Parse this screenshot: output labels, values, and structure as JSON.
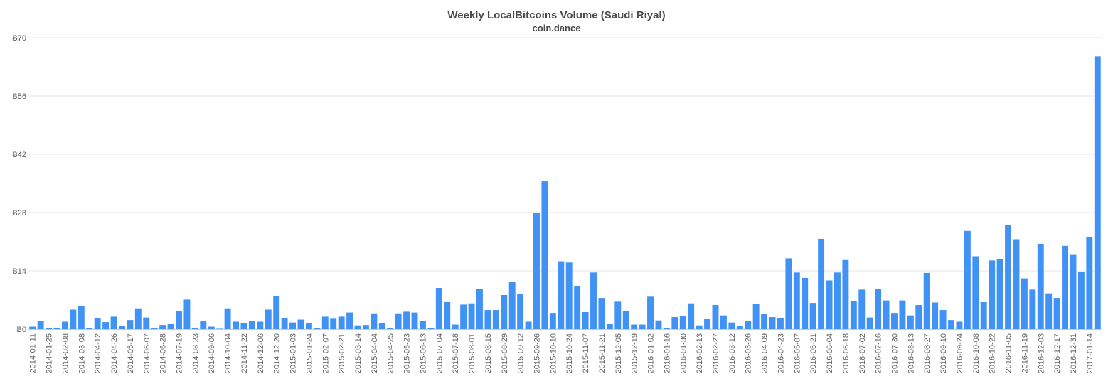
{
  "chart_data": {
    "type": "bar",
    "title": "Weekly LocalBitcoins Volume (Saudi Riyal)",
    "subtitle": "coin.dance",
    "xlabel": "",
    "ylabel": "",
    "ylim": [
      0,
      70
    ],
    "yticks": [
      "Ƀ0",
      "Ƀ14",
      "Ƀ28",
      "Ƀ42",
      "Ƀ56",
      "Ƀ70"
    ],
    "ytick_values": [
      0,
      14,
      28,
      42,
      56,
      70
    ],
    "grid": true,
    "legend": "none",
    "color": "#4192f5",
    "x_labels_shown": [
      "2014-01-11",
      "2014-01-25",
      "2014-02-08",
      "2014-03-08",
      "2014-04-12",
      "2014-04-26",
      "2014-05-17",
      "2014-06-07",
      "2014-06-28",
      "2014-07-19",
      "2014-08-23",
      "2014-09-06",
      "2014-10-04",
      "2014-11-22",
      "2014-12-06",
      "2014-12-20",
      "2015-01-03",
      "2015-01-24",
      "2015-02-07",
      "2015-02-21",
      "2015-03-14",
      "2015-04-04",
      "2015-04-25",
      "2015-05-23",
      "2015-06-13",
      "2015-07-04",
      "2015-07-18",
      "2015-08-01",
      "2015-08-15",
      "2015-08-29",
      "2015-09-12",
      "2015-09-26",
      "2015-10-10",
      "2015-10-24",
      "2015-11-07",
      "2015-11-21",
      "2015-12-05",
      "2015-12-19",
      "2016-01-02",
      "2016-01-16",
      "2016-01-30",
      "2016-02-13",
      "2016-02-27",
      "2016-03-12",
      "2016-03-26",
      "2016-04-09",
      "2016-04-23",
      "2016-05-07",
      "2016-05-21",
      "2016-06-04",
      "2016-06-18",
      "2016-07-02",
      "2016-07-16",
      "2016-07-30",
      "2016-08-13",
      "2016-08-27",
      "2016-09-10",
      "2016-09-24",
      "2016-10-08",
      "2016-10-22",
      "2016-11-05",
      "2016-11-19",
      "2016-12-03",
      "2016-12-17",
      "2016-12-31",
      "2017-01-14"
    ],
    "values": [
      0.6,
      2.0,
      0.2,
      0.3,
      1.8,
      4.7,
      5.5,
      0.2,
      2.6,
      1.7,
      3.0,
      0.7,
      2.2,
      5.0,
      2.8,
      0.3,
      1.0,
      1.2,
      4.3,
      7.1,
      0.3,
      2.0,
      0.6,
      0.1,
      5.0,
      1.8,
      1.5,
      2.0,
      1.8,
      4.7,
      8.0,
      2.7,
      1.6,
      2.3,
      1.4,
      0.2,
      3.0,
      2.5,
      3.0,
      4.0,
      0.9,
      1.0,
      3.8,
      1.4,
      0.3,
      3.8,
      4.2,
      4.0,
      2.0,
      0.2,
      9.9,
      6.5,
      1.1,
      5.9,
      6.2,
      9.6,
      4.6,
      4.6,
      8.2,
      11.4,
      8.4,
      1.8,
      28.0,
      35.5,
      3.9,
      16.3,
      16.0,
      10.3,
      4.1,
      13.6,
      7.5,
      1.2,
      6.6,
      4.3,
      1.1,
      1.1,
      7.8,
      2.1,
      0.2,
      2.9,
      3.2,
      6.2,
      0.9,
      2.4,
      5.8,
      3.3,
      1.6,
      0.8,
      2.0,
      6.0,
      3.7,
      2.9,
      2.6,
      17.0,
      13.6,
      12.3,
      6.3,
      21.7,
      11.7,
      13.6,
      16.6,
      6.7,
      9.5,
      2.8,
      9.6,
      6.9,
      3.9,
      6.9,
      3.3,
      5.8,
      13.5,
      6.4,
      4.6,
      2.2,
      1.8,
      23.6,
      17.5,
      6.5,
      16.5,
      16.9,
      25.0,
      21.6,
      12.2,
      9.5,
      20.5,
      8.6,
      7.5,
      20.0,
      18.0,
      13.8,
      22.1,
      65.5
    ]
  }
}
